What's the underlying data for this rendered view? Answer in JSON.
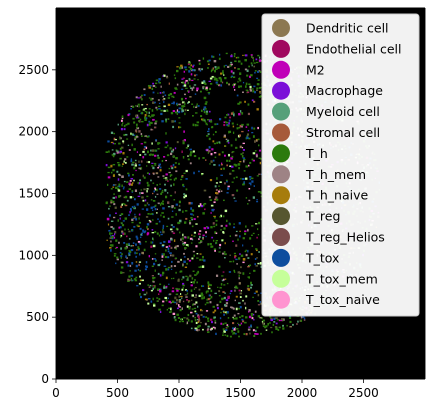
{
  "chart_data": {
    "type": "scatter",
    "title": "",
    "xlabel": "",
    "ylabel": "",
    "xlim": [
      0,
      3000
    ],
    "ylim": [
      0,
      3000
    ],
    "xticks": [
      0,
      500,
      1000,
      1500,
      2000,
      2500
    ],
    "yticks": [
      0,
      500,
      1000,
      1500,
      2000,
      2500
    ],
    "background": "#000000",
    "grid": false,
    "legend_position": "upper right",
    "tissue_center": [
      1490,
      1490
    ],
    "tissue_radius": 1150,
    "series": [
      {
        "name": "Dendritic cell",
        "color": "#8c7851",
        "share": 0.01
      },
      {
        "name": "Endothelial cell",
        "color": "#a0085e",
        "share": 0.02
      },
      {
        "name": "M2",
        "color": "#c000b8",
        "share": 0.04
      },
      {
        "name": "Macrophage",
        "color": "#7b0fd8",
        "share": 0.03
      },
      {
        "name": "Myeloid cell",
        "color": "#56a07a",
        "share": 0.08
      },
      {
        "name": "Stromal cell",
        "color": "#a65a3a",
        "share": 0.02
      },
      {
        "name": "T_h",
        "color": "#2c7a0d",
        "share": 0.42
      },
      {
        "name": "T_h_mem",
        "color": "#9e8385",
        "share": 0.08
      },
      {
        "name": "T_h_naive",
        "color": "#a67c0c",
        "share": 0.04
      },
      {
        "name": "T_reg",
        "color": "#565630",
        "share": 0.04
      },
      {
        "name": "T_reg_Helios",
        "color": "#7a4c4c",
        "share": 0.02
      },
      {
        "name": "T_tox",
        "color": "#0d4d9e",
        "share": 0.1
      },
      {
        "name": "T_tox_mem",
        "color": "#c6ff9a",
        "share": 0.06
      },
      {
        "name": "T_tox_naive",
        "color": "#ff94d0",
        "share": 0.04
      }
    ]
  }
}
